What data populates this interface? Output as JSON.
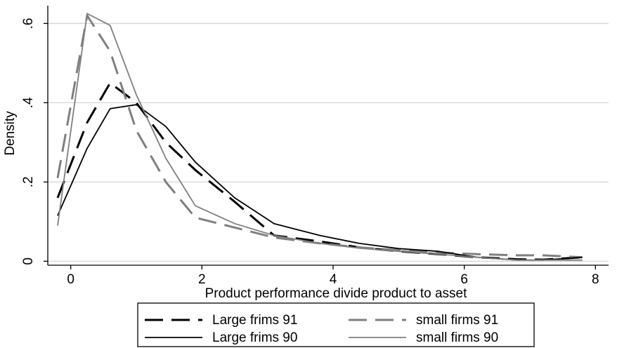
{
  "chart_data": {
    "type": "line",
    "xlabel": "Product performance divide product to asset",
    "ylabel": "Density",
    "xlim": [
      -0.35,
      8.2
    ],
    "ylim": [
      -0.01,
      0.645
    ],
    "x_ticks": [
      0,
      2,
      4,
      6,
      8
    ],
    "x_tick_labels": [
      "0",
      "2",
      "4",
      "6",
      "8"
    ],
    "y_ticks": [
      0,
      0.2,
      0.4,
      0.6
    ],
    "y_tick_labels": [
      "0",
      ".2",
      ".4",
      ".6"
    ],
    "grid": true,
    "legend_position": "bottom",
    "series": [
      {
        "name": "Large frims 91",
        "color": "#000000",
        "dash": "long-dash",
        "x": [
          -0.2,
          0.25,
          0.6,
          1.0,
          1.45,
          1.9,
          2.5,
          3.1,
          3.8,
          4.4,
          5.0,
          5.6,
          6.2,
          6.8,
          7.2,
          7.8
        ],
        "y": [
          0.16,
          0.35,
          0.45,
          0.4,
          0.3,
          0.23,
          0.15,
          0.065,
          0.05,
          0.035,
          0.025,
          0.018,
          0.01,
          0.005,
          0.004,
          0.01
        ]
      },
      {
        "name": "small firms 91",
        "color": "#7f7f7f",
        "dash": "long-dash",
        "x": [
          -0.2,
          0.25,
          0.6,
          1.0,
          1.45,
          1.9,
          2.5,
          3.1,
          3.8,
          4.4,
          5.0,
          5.6,
          6.2,
          6.8,
          7.2,
          7.8
        ],
        "y": [
          0.21,
          0.62,
          0.53,
          0.33,
          0.2,
          0.11,
          0.085,
          0.06,
          0.045,
          0.035,
          0.028,
          0.022,
          0.018,
          0.015,
          0.015,
          0.01
        ]
      },
      {
        "name": "Large frims 90",
        "color": "#000000",
        "dash": "solid",
        "x": [
          -0.2,
          0.25,
          0.6,
          1.0,
          1.45,
          1.9,
          2.5,
          3.1,
          3.8,
          4.4,
          5.0,
          5.6,
          6.2,
          6.8,
          7.2,
          7.8
        ],
        "y": [
          0.115,
          0.285,
          0.385,
          0.395,
          0.34,
          0.25,
          0.16,
          0.095,
          0.065,
          0.045,
          0.032,
          0.025,
          0.01,
          0.003,
          0.003,
          0.01
        ]
      },
      {
        "name": "small firms 90",
        "color": "#7f7f7f",
        "dash": "solid",
        "x": [
          -0.2,
          0.25,
          0.6,
          1.0,
          1.45,
          1.9,
          2.5,
          3.1,
          3.8,
          4.4,
          5.0,
          5.6,
          6.2,
          6.8,
          7.2,
          7.8
        ],
        "y": [
          0.09,
          0.625,
          0.595,
          0.42,
          0.26,
          0.14,
          0.095,
          0.065,
          0.045,
          0.033,
          0.025,
          0.018,
          0.01,
          0.003,
          0.003,
          0.003
        ]
      }
    ]
  }
}
